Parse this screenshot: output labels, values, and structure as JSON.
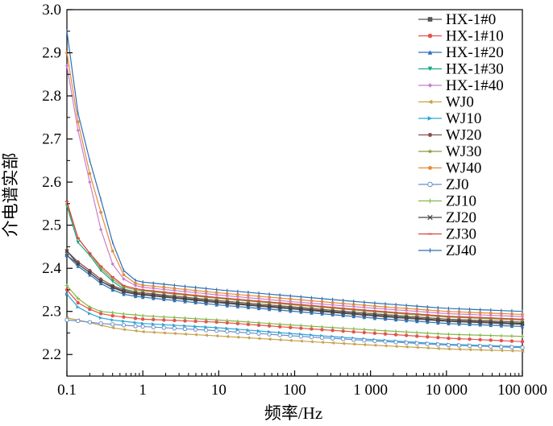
{
  "chart_data": {
    "type": "line",
    "title": "",
    "xlabel": "频率/Hz",
    "ylabel": "介电谱实部",
    "x_scale": "log",
    "xlim": [
      0.1,
      100000
    ],
    "ylim": [
      2.15,
      3.0
    ],
    "x_ticks": [
      {
        "value": 0.1,
        "label": "0.1"
      },
      {
        "value": 1,
        "label": "1"
      },
      {
        "value": 10,
        "label": "10"
      },
      {
        "value": 100,
        "label": "100"
      },
      {
        "value": 1000,
        "label": "1 000"
      },
      {
        "value": 10000,
        "label": "10 000"
      },
      {
        "value": 100000,
        "label": "100 000"
      }
    ],
    "y_ticks": [
      {
        "value": 2.2,
        "label": "2.2"
      },
      {
        "value": 2.3,
        "label": "2.3"
      },
      {
        "value": 2.4,
        "label": "2.4"
      },
      {
        "value": 2.5,
        "label": "2.5"
      },
      {
        "value": 2.6,
        "label": "2.6"
      },
      {
        "value": 2.7,
        "label": "2.7"
      },
      {
        "value": 2.8,
        "label": "2.8"
      },
      {
        "value": 2.9,
        "label": "2.9"
      },
      {
        "value": 3.0,
        "label": "3.0"
      }
    ],
    "grid": false,
    "legend_position": "top-right",
    "x": [
      0.1,
      0.14,
      0.2,
      0.28,
      0.4,
      0.56,
      0.8,
      1,
      10,
      100,
      1000,
      10000,
      100000
    ],
    "series": [
      {
        "name": "HX-1#0",
        "color": "#555555",
        "marker": "square",
        "values": [
          2.43,
          2.41,
          2.39,
          2.37,
          2.355,
          2.345,
          2.34,
          2.338,
          2.32,
          2.305,
          2.29,
          2.277,
          2.27
        ]
      },
      {
        "name": "HX-1#10",
        "color": "#e8524a",
        "marker": "circle",
        "values": [
          2.35,
          2.32,
          2.305,
          2.295,
          2.29,
          2.287,
          2.284,
          2.282,
          2.275,
          2.262,
          2.25,
          2.238,
          2.23
        ]
      },
      {
        "name": "HX-1#20",
        "color": "#2c6fb5",
        "marker": "triangle",
        "values": [
          2.43,
          2.405,
          2.385,
          2.365,
          2.35,
          2.34,
          2.335,
          2.333,
          2.315,
          2.3,
          2.285,
          2.272,
          2.265
        ]
      },
      {
        "name": "HX-1#30",
        "color": "#18a886",
        "marker": "tri-down",
        "values": [
          2.545,
          2.46,
          2.43,
          2.395,
          2.37,
          2.352,
          2.345,
          2.343,
          2.325,
          2.31,
          2.295,
          2.282,
          2.275
        ]
      },
      {
        "name": "HX-1#40",
        "color": "#c77fd0",
        "marker": "diamond",
        "values": [
          2.87,
          2.72,
          2.6,
          2.49,
          2.41,
          2.375,
          2.36,
          2.356,
          2.338,
          2.322,
          2.308,
          2.295,
          2.288
        ]
      },
      {
        "name": "WJ0",
        "color": "#c8a24a",
        "marker": "tri-left",
        "values": [
          2.285,
          2.28,
          2.274,
          2.268,
          2.262,
          2.258,
          2.255,
          2.253,
          2.243,
          2.232,
          2.222,
          2.213,
          2.208
        ]
      },
      {
        "name": "WJ10",
        "color": "#2aa6d6",
        "marker": "tri-right",
        "values": [
          2.34,
          2.31,
          2.295,
          2.285,
          2.28,
          2.277,
          2.274,
          2.272,
          2.262,
          2.248,
          2.235,
          2.224,
          2.218
        ]
      },
      {
        "name": "WJ20",
        "color": "#8a4f4a",
        "marker": "hexagon",
        "values": [
          2.44,
          2.415,
          2.395,
          2.375,
          2.36,
          2.35,
          2.345,
          2.343,
          2.325,
          2.31,
          2.295,
          2.282,
          2.275
        ]
      },
      {
        "name": "WJ30",
        "color": "#8a9a3a",
        "marker": "star",
        "values": [
          2.55,
          2.47,
          2.435,
          2.4,
          2.375,
          2.357,
          2.35,
          2.348,
          2.33,
          2.315,
          2.3,
          2.287,
          2.28
        ]
      },
      {
        "name": "WJ40",
        "color": "#e58a3a",
        "marker": "pentagon",
        "values": [
          2.9,
          2.74,
          2.62,
          2.53,
          2.44,
          2.385,
          2.365,
          2.361,
          2.343,
          2.328,
          2.313,
          2.3,
          2.293
        ]
      },
      {
        "name": "ZJ0",
        "color": "#6a8fc9",
        "marker": "circle-open",
        "values": [
          2.28,
          2.278,
          2.275,
          2.272,
          2.27,
          2.268,
          2.266,
          2.265,
          2.255,
          2.243,
          2.232,
          2.222,
          2.216
        ]
      },
      {
        "name": "ZJ10",
        "color": "#84b84a",
        "marker": "plus",
        "values": [
          2.36,
          2.33,
          2.31,
          2.3,
          2.297,
          2.294,
          2.292,
          2.29,
          2.28,
          2.268,
          2.257,
          2.247,
          2.242
        ]
      },
      {
        "name": "ZJ20",
        "color": "#444444",
        "marker": "x",
        "values": [
          2.44,
          2.41,
          2.39,
          2.37,
          2.357,
          2.347,
          2.342,
          2.34,
          2.322,
          2.307,
          2.292,
          2.279,
          2.272
        ]
      },
      {
        "name": "ZJ30",
        "color": "#d9443a",
        "marker": "dash",
        "values": [
          2.555,
          2.47,
          2.435,
          2.405,
          2.38,
          2.36,
          2.353,
          2.35,
          2.332,
          2.317,
          2.302,
          2.289,
          2.282
        ]
      },
      {
        "name": "ZJ40",
        "color": "#2c6fb5",
        "marker": "vline",
        "values": [
          2.95,
          2.76,
          2.65,
          2.56,
          2.46,
          2.395,
          2.372,
          2.368,
          2.35,
          2.335,
          2.32,
          2.307,
          2.3
        ]
      }
    ]
  }
}
